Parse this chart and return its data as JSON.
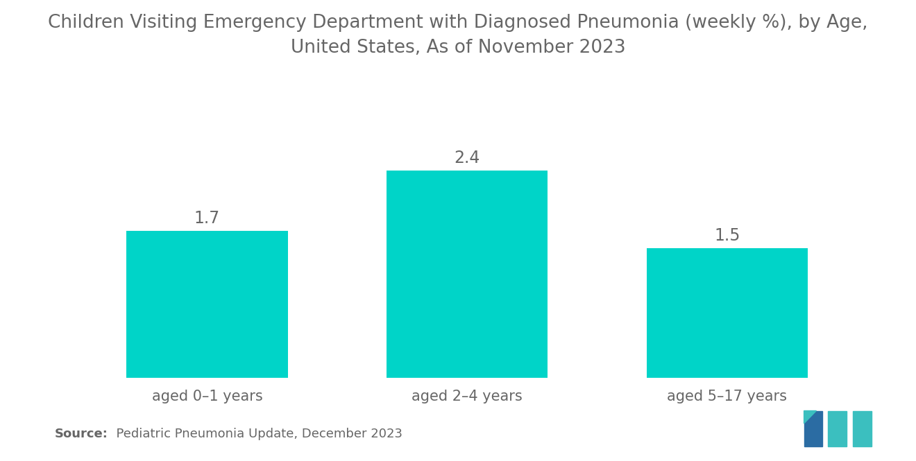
{
  "title": "Children Visiting Emergency Department with Diagnosed Pneumonia (weekly %), by Age,\nUnited States, As of November 2023",
  "categories": [
    "aged 0–1 years",
    "aged 2–4 years",
    "aged 5–17 years"
  ],
  "values": [
    1.7,
    2.4,
    1.5
  ],
  "bar_color": "#00D4C8",
  "background_color": "#ffffff",
  "title_color": "#666666",
  "label_color": "#666666",
  "source_bold": "Source:",
  "source_rest": "  Pediatric Pneumonia Update, December 2023",
  "title_fontsize": 19,
  "value_fontsize": 17,
  "xtick_fontsize": 15,
  "source_fontsize": 13,
  "ylim": [
    0,
    3.2
  ],
  "bar_width": 0.62,
  "logo_blue": "#2B6CA3",
  "logo_teal": "#3BBFBF"
}
